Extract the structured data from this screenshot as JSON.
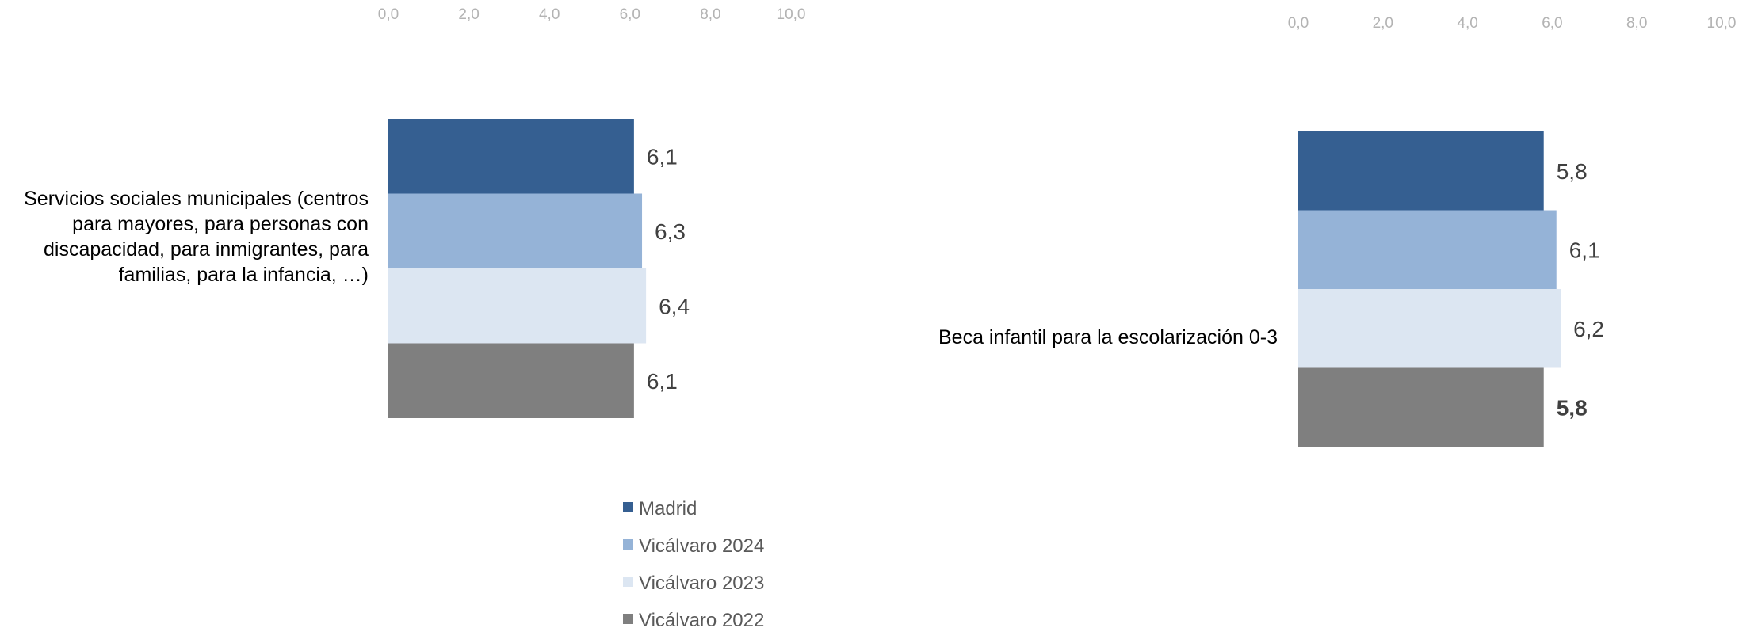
{
  "chart_data": [
    {
      "type": "bar",
      "orientation": "horizontal",
      "category": "Servicios sociales municipales (centros para mayores, para personas con discapacidad, para inmigrantes, para familias, para la infancia, …)",
      "category_lines": [
        "Servicios sociales municipales (centros",
        "para mayores, para personas con",
        "discapacidad, para inmigrantes, para",
        "familias, para la infancia, …)"
      ],
      "series": [
        {
          "name": "Madrid",
          "value": 6.1,
          "label": "6,1"
        },
        {
          "name": "Vicálvaro 2024",
          "value": 6.3,
          "label": "6,3"
        },
        {
          "name": "Vicálvaro 2023",
          "value": 6.4,
          "label": "6,4"
        },
        {
          "name": "Vicálvaro 2022",
          "value": 6.1,
          "label": "6,1"
        }
      ],
      "xlim": [
        0,
        10
      ],
      "ticks": [
        "0,0",
        "2,0",
        "4,0",
        "6,0",
        "8,0",
        "10,0"
      ],
      "tick_values": [
        0,
        2,
        4,
        6,
        8,
        10
      ]
    },
    {
      "type": "bar",
      "orientation": "horizontal",
      "category": "Beca infantil para la escolarización 0-3",
      "category_lines": [
        "Beca infantil para la escolarización 0-3"
      ],
      "series": [
        {
          "name": "Madrid",
          "value": 5.8,
          "label": "5,8"
        },
        {
          "name": "Vicálvaro 2024",
          "value": 6.1,
          "label": "6,1"
        },
        {
          "name": "Vicálvaro 2023",
          "value": 6.2,
          "label": "6,2"
        },
        {
          "name": "Vicálvaro 2022",
          "value": 5.8,
          "label": "5,8",
          "bold": true
        }
      ],
      "xlim": [
        0,
        10
      ],
      "ticks": [
        "0,0",
        "2,0",
        "4,0",
        "6,0",
        "8,0",
        "10,0"
      ],
      "tick_values": [
        0,
        2,
        4,
        6,
        8,
        10
      ]
    }
  ],
  "legend": [
    {
      "name": "Madrid",
      "color": "#355f91"
    },
    {
      "name": "Vicálvaro 2024",
      "color": "#95b3d7"
    },
    {
      "name": "Vicálvaro 2023",
      "color": "#dce6f2"
    },
    {
      "name": "Vicálvaro 2022",
      "color": "#7f7f7f"
    }
  ],
  "colors": [
    "#355f91",
    "#95b3d7",
    "#dce6f2",
    "#7f7f7f"
  ]
}
